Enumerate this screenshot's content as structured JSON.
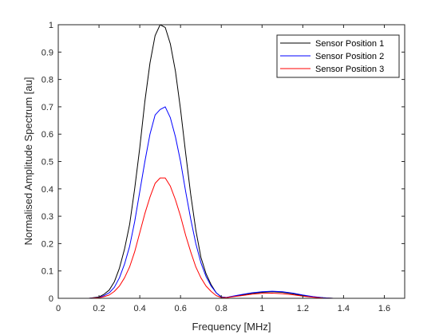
{
  "chart_data": {
    "type": "line",
    "title": "",
    "xlabel": "Frequency [MHz]",
    "ylabel": "Normalised Amplitude Spectrum [au]",
    "xlim": [
      0,
      1.7
    ],
    "ylim": [
      0,
      1
    ],
    "xticks": [
      0,
      0.2,
      0.4,
      0.6,
      0.8,
      1,
      1.2,
      1.4,
      1.6
    ],
    "xtick_labels": [
      "0",
      "0.2",
      "0.4",
      "0.6",
      "0.8",
      "1",
      "1.2",
      "1.4",
      "1.6"
    ],
    "yticks": [
      0,
      0.1,
      0.2,
      0.3,
      0.4,
      0.5,
      0.6,
      0.7,
      0.8,
      0.9,
      1
    ],
    "ytick_labels": [
      "0",
      "0.1",
      "0.2",
      "0.3",
      "0.4",
      "0.5",
      "0.6",
      "0.7",
      "0.8",
      "0.9",
      "1"
    ],
    "grid": false,
    "box": true,
    "legend_position": "top-right",
    "x": [
      0,
      0.1,
      0.15,
      0.2,
      0.225,
      0.25,
      0.275,
      0.3,
      0.325,
      0.35,
      0.375,
      0.4,
      0.425,
      0.45,
      0.475,
      0.5,
      0.525,
      0.55,
      0.575,
      0.6,
      0.625,
      0.65,
      0.675,
      0.7,
      0.725,
      0.75,
      0.775,
      0.8,
      0.825,
      0.85,
      0.9,
      0.95,
      1,
      1.05,
      1.1,
      1.15,
      1.2,
      1.25,
      1.3,
      1.35,
      1.4,
      1.5,
      1.6,
      1.7
    ],
    "series": [
      {
        "name": "Sensor Position 1",
        "color": "#000000",
        "values": [
          0,
          0,
          0,
          0.005,
          0.015,
          0.03,
          0.06,
          0.11,
          0.18,
          0.27,
          0.4,
          0.55,
          0.72,
          0.86,
          0.96,
          1.0,
          0.99,
          0.93,
          0.83,
          0.69,
          0.53,
          0.38,
          0.25,
          0.15,
          0.09,
          0.05,
          0.02,
          0.005,
          0.003,
          0.006,
          0.012,
          0.018,
          0.022,
          0.024,
          0.022,
          0.017,
          0.01,
          0.005,
          0.002,
          0,
          0,
          0,
          0,
          0
        ]
      },
      {
        "name": "Sensor Position 2",
        "color": "#0000ff",
        "values": [
          0,
          0,
          0,
          0.003,
          0.01,
          0.02,
          0.04,
          0.075,
          0.125,
          0.19,
          0.28,
          0.39,
          0.5,
          0.6,
          0.67,
          0.69,
          0.7,
          0.66,
          0.59,
          0.5,
          0.39,
          0.29,
          0.2,
          0.13,
          0.08,
          0.045,
          0.02,
          0.005,
          0.003,
          0.007,
          0.014,
          0.02,
          0.024,
          0.026,
          0.024,
          0.019,
          0.012,
          0.006,
          0.002,
          0,
          0,
          0,
          0,
          0
        ]
      },
      {
        "name": "Sensor Position 3",
        "color": "#ff0000",
        "values": [
          0,
          0,
          0,
          0.002,
          0.006,
          0.012,
          0.025,
          0.045,
          0.075,
          0.115,
          0.17,
          0.24,
          0.31,
          0.37,
          0.42,
          0.44,
          0.44,
          0.41,
          0.36,
          0.3,
          0.23,
          0.17,
          0.115,
          0.075,
          0.045,
          0.025,
          0.01,
          0.003,
          0.002,
          0.005,
          0.01,
          0.015,
          0.018,
          0.019,
          0.017,
          0.013,
          0.008,
          0.004,
          0.001,
          0,
          0,
          0,
          0,
          0
        ]
      }
    ]
  }
}
